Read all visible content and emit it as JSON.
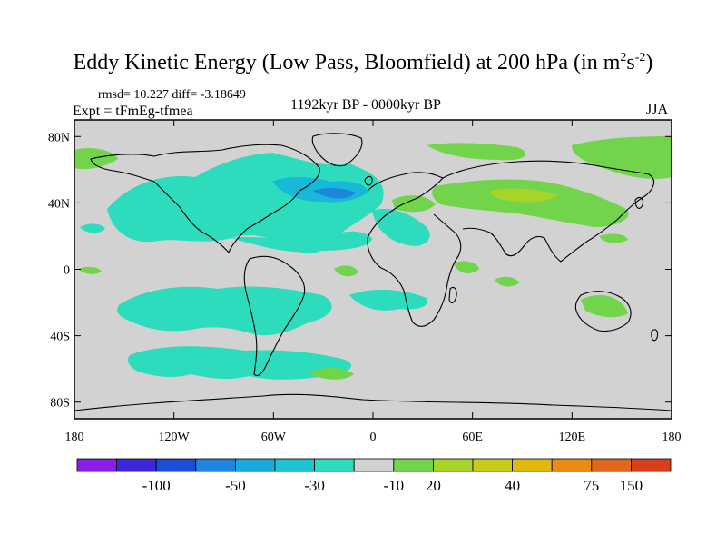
{
  "title": {
    "main": "Eddy Kinetic Energy (Low Pass, Bloomfield) at 200 hPa (in m",
    "sup1": "2",
    "mid": "s",
    "sup2": "-2",
    "close": ")"
  },
  "stats": {
    "text": "rmsd= 10.227 diff= -3.18649"
  },
  "experiment": {
    "text": "Expt = tFmEg-tfmea"
  },
  "period": {
    "text": "1192kyr BP - 0000kyr BP"
  },
  "season": {
    "text": "JJA"
  },
  "axes": {
    "lat_labels": [
      "80N",
      "40N",
      "0",
      "40S",
      "80S"
    ],
    "lat_values": [
      80,
      40,
      0,
      -40,
      -80
    ],
    "lon_labels": [
      "180",
      "120W",
      "60W",
      "0",
      "60E",
      "120E",
      "180"
    ],
    "lon_values": [
      -180,
      -120,
      -60,
      0,
      60,
      120,
      180
    ]
  },
  "colorbar": {
    "colors": [
      "#8a1ee6",
      "#3c28d8",
      "#1a4ed6",
      "#1f84dd",
      "#17a9e0",
      "#1dc4d0",
      "#2cdcbd",
      "#d2d2d2",
      "#72d44a",
      "#a6d428",
      "#c6cc18",
      "#e3b80e",
      "#ea8c14",
      "#e2661c",
      "#d8401c"
    ],
    "labels": [
      "-100",
      "-50",
      "-30",
      "-10",
      "20",
      "40",
      "75",
      "150"
    ],
    "label_boundaries": [
      2,
      4,
      6,
      8,
      9,
      11,
      13,
      14
    ]
  },
  "legend_fields": {
    "blue_values": "#1f9ee8",
    "cyan_values": "#2cdcbd",
    "green_values": "#7dd642",
    "lightgreen_values": "#a6d428",
    "zero_band": "#d2d2d2"
  }
}
